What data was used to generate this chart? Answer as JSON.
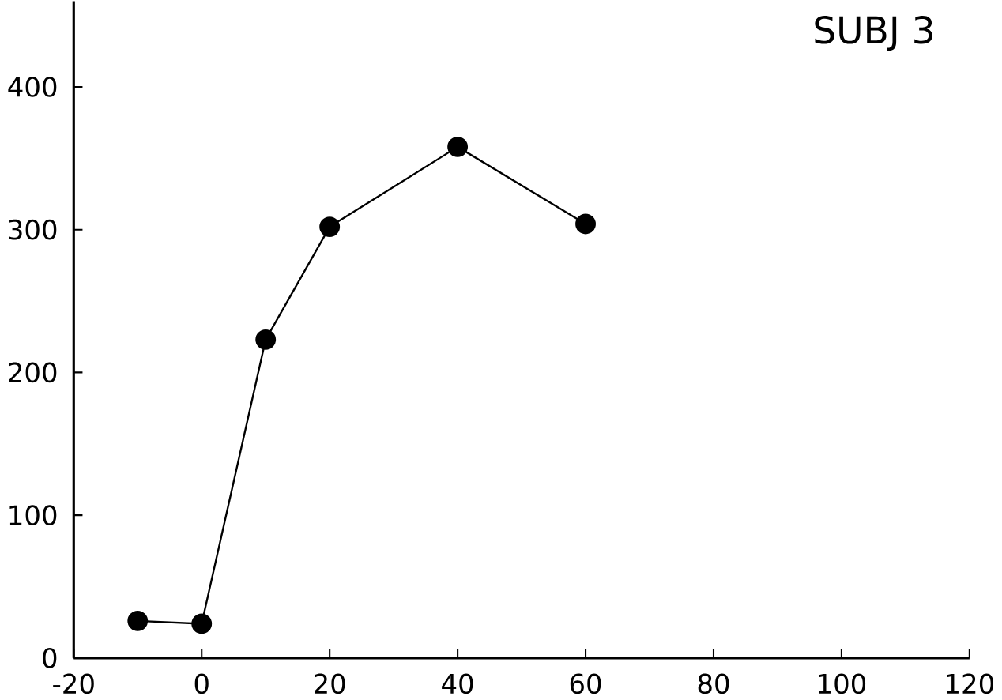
{
  "chart_data": {
    "type": "line",
    "title": "SUBJ 3",
    "x": [
      -10,
      0,
      10,
      20,
      40,
      60
    ],
    "series": [
      {
        "color": "#000000",
        "values": [
          26,
          24,
          223,
          302,
          358,
          304
        ]
      }
    ],
    "xlim": [
      -20,
      120
    ],
    "xticks": [
      -20,
      0,
      20,
      40,
      60,
      80,
      100,
      120
    ],
    "ylim": [
      0,
      460
    ],
    "yticks": [
      0,
      100,
      200,
      300,
      400
    ],
    "marker": "circle",
    "line_style": "solid",
    "grid": false
  }
}
